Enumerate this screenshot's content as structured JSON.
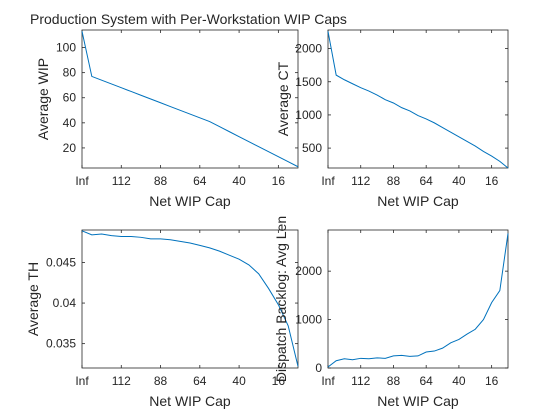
{
  "figure": {
    "title": "Production System with Per-Workstation WIP Caps"
  },
  "chart_data": [
    {
      "type": "line",
      "title": "",
      "xlabel": "Net WIP Cap",
      "ylabel": "Average WIP",
      "x_tick_labels": [
        "Inf",
        "112",
        "88",
        "64",
        "40",
        "16"
      ],
      "x_tick_positions": [
        0,
        4,
        8,
        12,
        16,
        20
      ],
      "xlim": [
        0,
        22
      ],
      "ylim": [
        4,
        114
      ],
      "y_ticks": [
        20,
        40,
        60,
        80,
        100
      ],
      "series": [
        {
          "name": "",
          "color": "#0072BD",
          "x": [
            0,
            1,
            2,
            3,
            4,
            5,
            6,
            7,
            8,
            9,
            10,
            11,
            12,
            13,
            14,
            15,
            16,
            17,
            18,
            19,
            20,
            21,
            22
          ],
          "y": [
            113,
            77,
            74,
            71,
            68,
            65,
            62,
            59,
            56,
            53,
            50,
            47,
            44,
            41,
            37,
            33,
            29,
            25,
            21,
            17,
            13,
            9,
            5
          ]
        }
      ]
    },
    {
      "type": "line",
      "title": "",
      "xlabel": "Net WIP Cap",
      "ylabel": "Average CT",
      "x_tick_labels": [
        "Inf",
        "112",
        "88",
        "64",
        "40",
        "16"
      ],
      "x_tick_positions": [
        0,
        4,
        8,
        12,
        16,
        20
      ],
      "xlim": [
        0,
        22
      ],
      "ylim": [
        200,
        2280
      ],
      "y_ticks": [
        500,
        1000,
        1500,
        2000
      ],
      "series": [
        {
          "name": "",
          "color": "#0072BD",
          "x": [
            0,
            1,
            2,
            3,
            4,
            5,
            6,
            7,
            8,
            9,
            10,
            11,
            12,
            13,
            14,
            15,
            16,
            17,
            18,
            19,
            20,
            21,
            22
          ],
          "y": [
            2260,
            1600,
            1530,
            1470,
            1410,
            1360,
            1300,
            1230,
            1180,
            1110,
            1060,
            990,
            940,
            880,
            810,
            740,
            670,
            600,
            530,
            450,
            380,
            300,
            200
          ]
        }
      ]
    },
    {
      "type": "line",
      "title": "",
      "xlabel": "Net WIP Cap",
      "ylabel": "Average TH",
      "x_tick_labels": [
        "Inf",
        "112",
        "88",
        "64",
        "40",
        "16"
      ],
      "x_tick_positions": [
        0,
        4,
        8,
        12,
        16,
        20
      ],
      "xlim": [
        0,
        22
      ],
      "ylim": [
        0.032,
        0.049
      ],
      "y_ticks": [
        0.035,
        0.04,
        0.045
      ],
      "series": [
        {
          "name": "",
          "color": "#0072BD",
          "x": [
            0,
            1,
            2,
            3,
            4,
            5,
            6,
            7,
            8,
            9,
            10,
            11,
            12,
            13,
            14,
            15,
            16,
            17,
            18,
            19,
            20,
            21,
            22
          ],
          "y": [
            0.0489,
            0.0484,
            0.0485,
            0.0483,
            0.0482,
            0.0482,
            0.0481,
            0.0479,
            0.0479,
            0.0478,
            0.0476,
            0.0474,
            0.0471,
            0.0468,
            0.0464,
            0.0459,
            0.0454,
            0.0447,
            0.0436,
            0.0418,
            0.0398,
            0.0372,
            0.0322
          ]
        }
      ]
    },
    {
      "type": "line",
      "title": "",
      "xlabel": "Net WIP Cap",
      "ylabel": "Dispatch Backlog: Avg Len",
      "x_tick_labels": [
        "Inf",
        "112",
        "88",
        "64",
        "40",
        "16"
      ],
      "x_tick_positions": [
        0,
        4,
        8,
        12,
        16,
        20
      ],
      "xlim": [
        0,
        22
      ],
      "ylim": [
        0,
        2850
      ],
      "y_ticks": [
        0,
        1000,
        2000
      ],
      "series": [
        {
          "name": "",
          "color": "#0072BD",
          "x": [
            0,
            1,
            2,
            3,
            4,
            5,
            6,
            7,
            8,
            9,
            10,
            11,
            12,
            13,
            14,
            15,
            16,
            17,
            18,
            19,
            20,
            21,
            22
          ],
          "y": [
            20,
            150,
            190,
            170,
            200,
            190,
            210,
            200,
            250,
            260,
            240,
            250,
            330,
            350,
            410,
            520,
            590,
            700,
            800,
            1000,
            1350,
            1600,
            2780
          ]
        }
      ]
    }
  ]
}
